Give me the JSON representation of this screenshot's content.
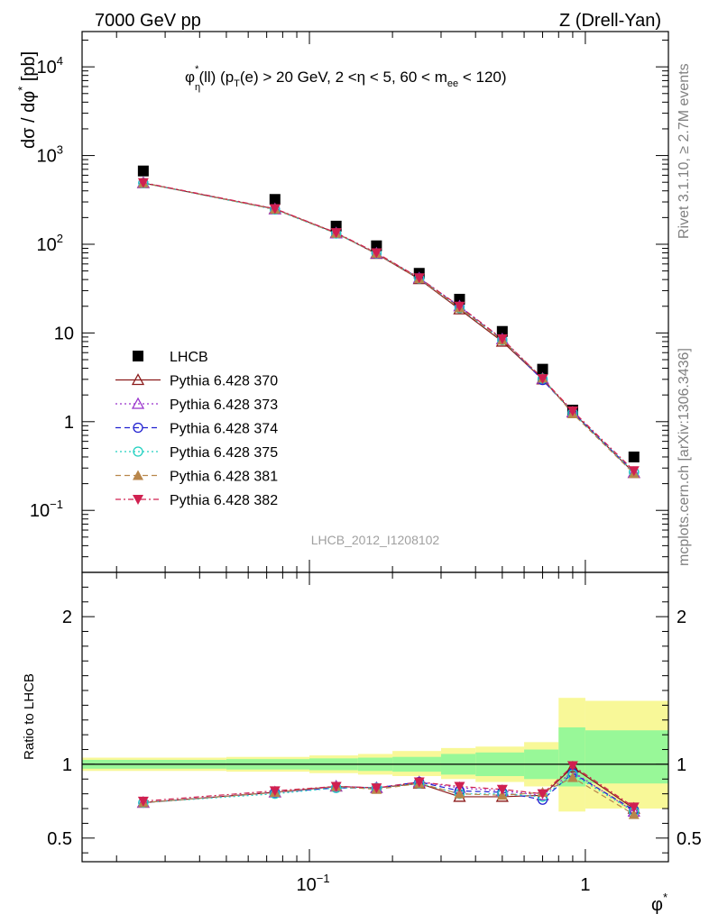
{
  "header": {
    "energy": "7000 GeV pp",
    "process": "Z (Drell-Yan)",
    "plot_title": "φ*η(ll) (pT(e) > 20 GeV, 2 <η < 5, 60 < mee < 120)",
    "ylabel_main": "dσ / dφ* [pb]",
    "ylabel_ratio": "Ratio to LHCB",
    "xlabel": "φ*",
    "analysis_id": "LHCB_2012_I1208102",
    "side_label_rivet": "Rivet 3.1.10, ≥ 2.7M events",
    "side_label_mcplots": "mcplots.cern.ch [arXiv:1306.3436]"
  },
  "colors": {
    "data": "#000000",
    "p370": "#8b1a1a",
    "p373": "#9932cc",
    "p374": "#2020d0",
    "p375": "#20d0c0",
    "p381": "#b8864b",
    "p382": "#d02050",
    "band_inner": "#98f898",
    "band_outer": "#f8f898"
  },
  "chart_data": [
    {
      "type": "scatter",
      "panel": "main",
      "x_scale": "log",
      "y_scale": "log",
      "xlim": [
        0.015,
        2.0
      ],
      "ylim": [
        0.02,
        25000
      ],
      "y_tick_labels": [
        "10^-1",
        "1",
        "10",
        "10^2",
        "10^3",
        "10^4"
      ],
      "x": [
        0.025,
        0.075,
        0.125,
        0.175,
        0.25,
        0.35,
        0.5,
        0.7,
        0.9,
        1.5
      ],
      "series": [
        {
          "name": "LHCB",
          "key": "data",
          "marker": "square",
          "values": [
            670,
            320,
            160,
            96,
            47,
            24,
            10.4,
            3.9,
            1.35,
            0.4
          ]
        },
        {
          "name": "Pythia 6.428 370",
          "key": "p370",
          "marker": "triangle-open",
          "values": [
            490,
            250,
            134,
            78,
            40.5,
            18.5,
            8.0,
            3.0,
            1.28,
            0.265
          ]
        },
        {
          "name": "Pythia 6.428 373",
          "key": "p373",
          "marker": "triangle-open",
          "values": [
            492,
            248,
            133,
            79,
            41.5,
            20.0,
            8.5,
            3.05,
            1.27,
            0.265
          ]
        },
        {
          "name": "Pythia 6.428 374",
          "key": "p374",
          "marker": "circle-open",
          "values": [
            492,
            248,
            133,
            79,
            41.5,
            19.5,
            8.4,
            2.95,
            1.27,
            0.27
          ]
        },
        {
          "name": "Pythia 6.428 375",
          "key": "p375",
          "marker": "circle-open",
          "values": [
            490,
            246,
            132,
            79,
            41.0,
            19.0,
            8.3,
            3.05,
            1.25,
            0.27
          ]
        },
        {
          "name": "Pythia 6.428 381",
          "key": "p381",
          "marker": "triangle-filled",
          "values": [
            492,
            248,
            133,
            79,
            41.0,
            19.2,
            8.3,
            3.1,
            1.23,
            0.26
          ]
        },
        {
          "name": "Pythia 6.428 382",
          "key": "p382",
          "marker": "triangle-down-filled",
          "values": [
            495,
            252,
            135,
            80,
            41.8,
            20.0,
            8.6,
            3.05,
            1.32,
            0.28
          ]
        }
      ]
    },
    {
      "type": "scatter",
      "panel": "ratio",
      "x_scale": "log",
      "xlim": [
        0.015,
        2.0
      ],
      "ylim": [
        0.34,
        2.3
      ],
      "y_ticks": [
        0.5,
        1,
        2
      ],
      "y_tick_labels": [
        "0.5",
        "1",
        "2"
      ],
      "x_tick_labels": [
        "10^-1",
        "1"
      ],
      "band_edges": [
        0.015,
        0.05,
        0.1,
        0.15,
        0.2,
        0.3,
        0.4,
        0.6,
        0.8,
        1.0,
        2.0
      ],
      "band_inner": [
        [
          0.97,
          1.03
        ],
        [
          0.965,
          1.035
        ],
        [
          0.96,
          1.04
        ],
        [
          0.955,
          1.045
        ],
        [
          0.95,
          1.05
        ],
        [
          0.93,
          1.07
        ],
        [
          0.92,
          1.08
        ],
        [
          0.9,
          1.1
        ],
        [
          0.85,
          1.25
        ],
        [
          0.87,
          1.23
        ]
      ],
      "band_outer": [
        [
          0.955,
          1.045
        ],
        [
          0.95,
          1.05
        ],
        [
          0.94,
          1.06
        ],
        [
          0.93,
          1.07
        ],
        [
          0.92,
          1.09
        ],
        [
          0.9,
          1.11
        ],
        [
          0.88,
          1.12
        ],
        [
          0.85,
          1.15
        ],
        [
          0.68,
          1.45
        ],
        [
          0.7,
          1.43
        ]
      ],
      "x": [
        0.025,
        0.075,
        0.125,
        0.175,
        0.25,
        0.35,
        0.5,
        0.7,
        0.9,
        1.5
      ],
      "series": [
        {
          "name": "Pythia 6.428 370",
          "key": "p370",
          "marker": "triangle-open",
          "values": [
            0.74,
            0.81,
            0.85,
            0.84,
            0.87,
            0.78,
            0.78,
            0.79,
            0.98,
            0.7
          ]
        },
        {
          "name": "Pythia 6.428 373",
          "key": "p373",
          "marker": "triangle-open",
          "values": [
            0.74,
            0.81,
            0.85,
            0.84,
            0.88,
            0.84,
            0.82,
            0.79,
            0.95,
            0.68
          ]
        },
        {
          "name": "Pythia 6.428 374",
          "key": "p374",
          "marker": "circle-open",
          "values": [
            0.74,
            0.81,
            0.84,
            0.84,
            0.88,
            0.82,
            0.81,
            0.76,
            0.94,
            0.69
          ]
        },
        {
          "name": "Pythia 6.428 375",
          "key": "p375",
          "marker": "circle-open",
          "values": [
            0.74,
            0.8,
            0.84,
            0.84,
            0.87,
            0.8,
            0.8,
            0.78,
            0.93,
            0.68
          ]
        },
        {
          "name": "Pythia 6.428 381",
          "key": "p381",
          "marker": "triangle-filled",
          "values": [
            0.74,
            0.81,
            0.85,
            0.83,
            0.87,
            0.8,
            0.79,
            0.81,
            0.91,
            0.66
          ]
        },
        {
          "name": "Pythia 6.428 382",
          "key": "p382",
          "marker": "triangle-down-filled",
          "values": [
            0.75,
            0.82,
            0.85,
            0.84,
            0.88,
            0.85,
            0.83,
            0.8,
            0.99,
            0.71
          ]
        }
      ]
    }
  ]
}
